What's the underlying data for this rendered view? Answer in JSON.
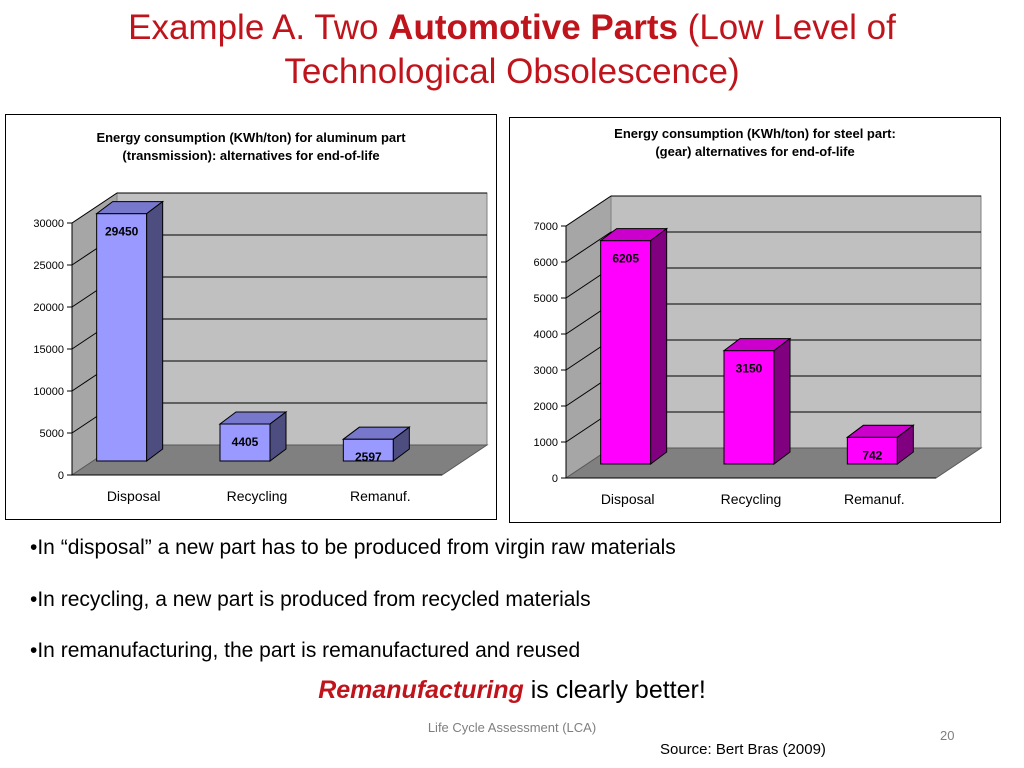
{
  "slide": {
    "title_pre": "Example A. Two ",
    "title_bold": "Automotive Parts",
    "title_post": " (Low Level of Technological Obsolescence)",
    "bullets": [
      "•In “disposal” a new part has to be produced from virgin raw materials",
      "•In recycling, a new part is produced from recycled materials",
      "•In remanufacturing, the part is remanufactured and reused"
    ],
    "conclusion_em": "Remanufacturing",
    "conclusion_rest": " is clearly better!",
    "footer": "Life Cycle Assessment (LCA)",
    "page_number": "20",
    "source": "Source: Bert Bras (2009)"
  },
  "chart_data": [
    {
      "type": "bar",
      "title_line1": "Energy consumption (KWh/ton) for aluminum part",
      "title_line2": "(transmission): alternatives for end-of-life",
      "categories": [
        "Disposal",
        "Recycling",
        "Remanuf."
      ],
      "values": [
        29450,
        4405,
        2597
      ],
      "value_labels": [
        "29450",
        "4405",
        "2597"
      ],
      "ylim": [
        0,
        30000
      ],
      "ticks": [
        0,
        5000,
        10000,
        15000,
        20000,
        25000,
        30000
      ],
      "tick_labels": [
        "0",
        "5000",
        "10000",
        "15000",
        "20000",
        "25000",
        "30000"
      ],
      "bar_color": "#9999ff",
      "bar_side": "#4d4d80",
      "bar_top": "#7777cc",
      "grid": true,
      "legend": "none"
    },
    {
      "type": "bar",
      "title_line1": "Energy consumption (KWh/ton) for steel part:",
      "title_line2": "(gear) alternatives for end-of-life",
      "categories": [
        "Disposal",
        "Recycling",
        "Remanuf."
      ],
      "values": [
        6205,
        3150,
        742
      ],
      "value_labels": [
        "6205",
        "3150",
        "742"
      ],
      "ylim": [
        0,
        7000
      ],
      "ticks": [
        0,
        1000,
        2000,
        3000,
        4000,
        5000,
        6000,
        7000
      ],
      "tick_labels": [
        "0",
        "1000",
        "2000",
        "3000",
        "4000",
        "5000",
        "6000",
        "7000"
      ],
      "bar_color": "#ff00ff",
      "bar_side": "#800080",
      "bar_top": "#cc00cc",
      "grid": true,
      "legend": "none"
    }
  ]
}
